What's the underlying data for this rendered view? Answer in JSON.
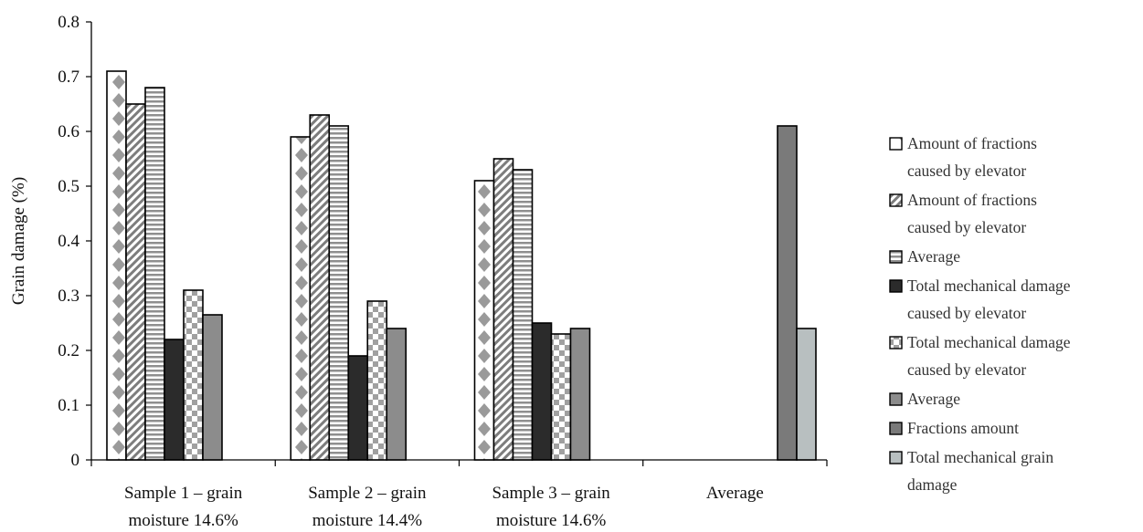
{
  "chart_data": {
    "type": "bar",
    "ylabel": "Grain damage (%)",
    "xlabel": "",
    "ylim": [
      0,
      0.8
    ],
    "yticks": [
      "0",
      "0.1",
      "0.2",
      "0.3",
      "0.4",
      "0.5",
      "0.6",
      "0.7",
      "0.8"
    ],
    "grid": false,
    "legend_position": "right",
    "categories": [
      [
        "Sample 1 – grain",
        "moisture 14.6%"
      ],
      [
        "Sample 2 – grain",
        "moisture 14.4%"
      ],
      [
        "Sample 3 – grain",
        "moisture 14.6%"
      ],
      [
        "Average"
      ]
    ],
    "series": [
      {
        "name": [
          "Amount of fractions",
          "caused by elevator"
        ],
        "values": [
          0.71,
          0.59,
          0.51,
          null
        ],
        "pattern": "diamonds",
        "color": "#9a9a9a"
      },
      {
        "name": [
          "Amount of fractions",
          "caused by elevator"
        ],
        "values": [
          0.65,
          0.63,
          0.55,
          null
        ],
        "pattern": "diagonal",
        "color": "#8a8a8a"
      },
      {
        "name": [
          "Average"
        ],
        "values": [
          0.68,
          0.61,
          0.53,
          null
        ],
        "pattern": "horizontal",
        "color": "#9a9a9a"
      },
      {
        "name": [
          "Total mechanical damage",
          "caused by elevator"
        ],
        "values": [
          0.22,
          0.19,
          0.25,
          null
        ],
        "pattern": "solid",
        "color": "#2b2b2b"
      },
      {
        "name": [
          "Total mechanical damage",
          "caused by elevator"
        ],
        "values": [
          0.31,
          0.29,
          0.23,
          null
        ],
        "pattern": "checker",
        "color": "#a0a0a0"
      },
      {
        "name": [
          "Average"
        ],
        "values": [
          0.265,
          0.24,
          0.24,
          null
        ],
        "pattern": "solid",
        "color": "#8c8c8c"
      },
      {
        "name": [
          "Fractions amount"
        ],
        "values": [
          null,
          null,
          null,
          0.61
        ],
        "pattern": "solid",
        "color": "#7a7a7a"
      },
      {
        "name": [
          "Total mechanical grain",
          "damage"
        ],
        "values": [
          null,
          null,
          null,
          0.24
        ],
        "pattern": "solid",
        "color": "#b8bfc0"
      }
    ]
  }
}
